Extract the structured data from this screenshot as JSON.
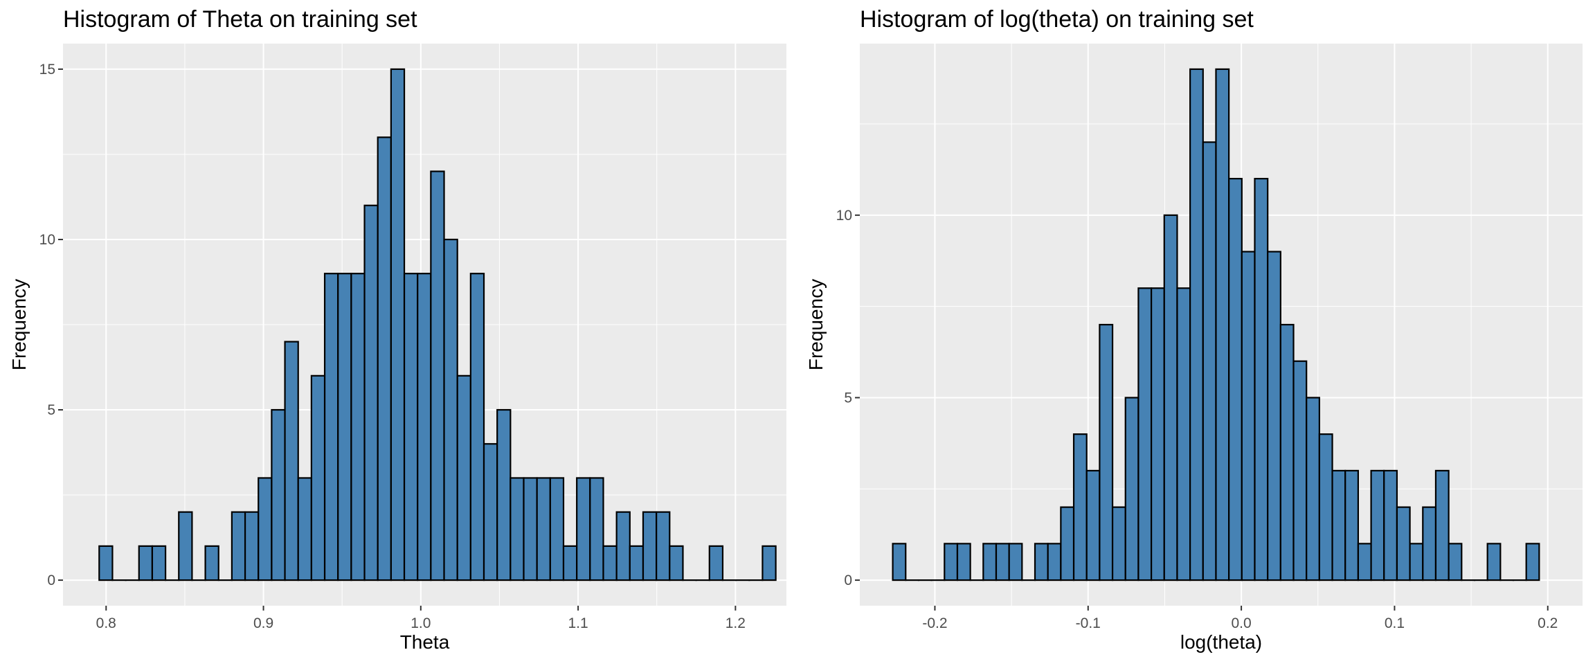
{
  "chart_data": [
    {
      "type": "bar",
      "title": "Histogram of Theta on training set",
      "xlabel": "Theta",
      "ylabel": "Frequency",
      "xlim": [
        0.7726,
        1.2324
      ],
      "ylim": [
        -0.75,
        15.75
      ],
      "x_ticks": [
        0.8,
        0.9,
        1.0,
        1.1,
        1.2
      ],
      "x_tick_labels": [
        "0.8",
        "0.9",
        "1.0",
        "1.1",
        "1.2"
      ],
      "y_ticks": [
        0,
        5,
        10,
        15
      ],
      "y_tick_labels": [
        "0",
        "5",
        "10",
        "15"
      ],
      "bin_start": 0.7956,
      "bin_width": 0.008432,
      "values": [
        1,
        0,
        0,
        1,
        1,
        0,
        2,
        0,
        1,
        0,
        2,
        2,
        3,
        5,
        7,
        3,
        6,
        9,
        9,
        9,
        11,
        13,
        15,
        9,
        9,
        12,
        10,
        6,
        9,
        4,
        5,
        3,
        3,
        3,
        3,
        1,
        3,
        3,
        1,
        2,
        1,
        2,
        2,
        1,
        0,
        0,
        1,
        0,
        0,
        0,
        1
      ],
      "grid": true,
      "fill_color": "#4682B4",
      "edge_color": "#000000",
      "panel_color": "#EBEBEB"
    },
    {
      "type": "bar",
      "title": "Histogram of log(theta) on training set",
      "xlabel": "log(theta)",
      "ylabel": "Frequency",
      "xlim": [
        -0.249,
        0.2227
      ],
      "ylim": [
        -0.7,
        14.7
      ],
      "x_ticks": [
        -0.2,
        -0.1,
        0.0,
        0.1,
        0.2
      ],
      "x_tick_labels": [
        "-0.2",
        "-0.1",
        "0.0",
        "0.1",
        "0.2"
      ],
      "y_ticks": [
        0,
        5,
        10
      ],
      "y_tick_labels": [
        "0",
        "5",
        "10"
      ],
      "bin_start": -0.2275,
      "bin_width": 0.008438,
      "values": [
        1,
        0,
        0,
        0,
        1,
        1,
        0,
        1,
        1,
        1,
        0,
        1,
        1,
        2,
        4,
        3,
        7,
        2,
        5,
        8,
        8,
        10,
        8,
        14,
        12,
        14,
        11,
        9,
        11,
        9,
        7,
        6,
        5,
        4,
        3,
        3,
        1,
        3,
        3,
        2,
        1,
        2,
        3,
        1,
        0,
        0,
        1,
        0,
        0,
        1
      ],
      "grid": true,
      "fill_color": "#4682B4",
      "edge_color": "#000000",
      "panel_color": "#EBEBEB"
    }
  ]
}
